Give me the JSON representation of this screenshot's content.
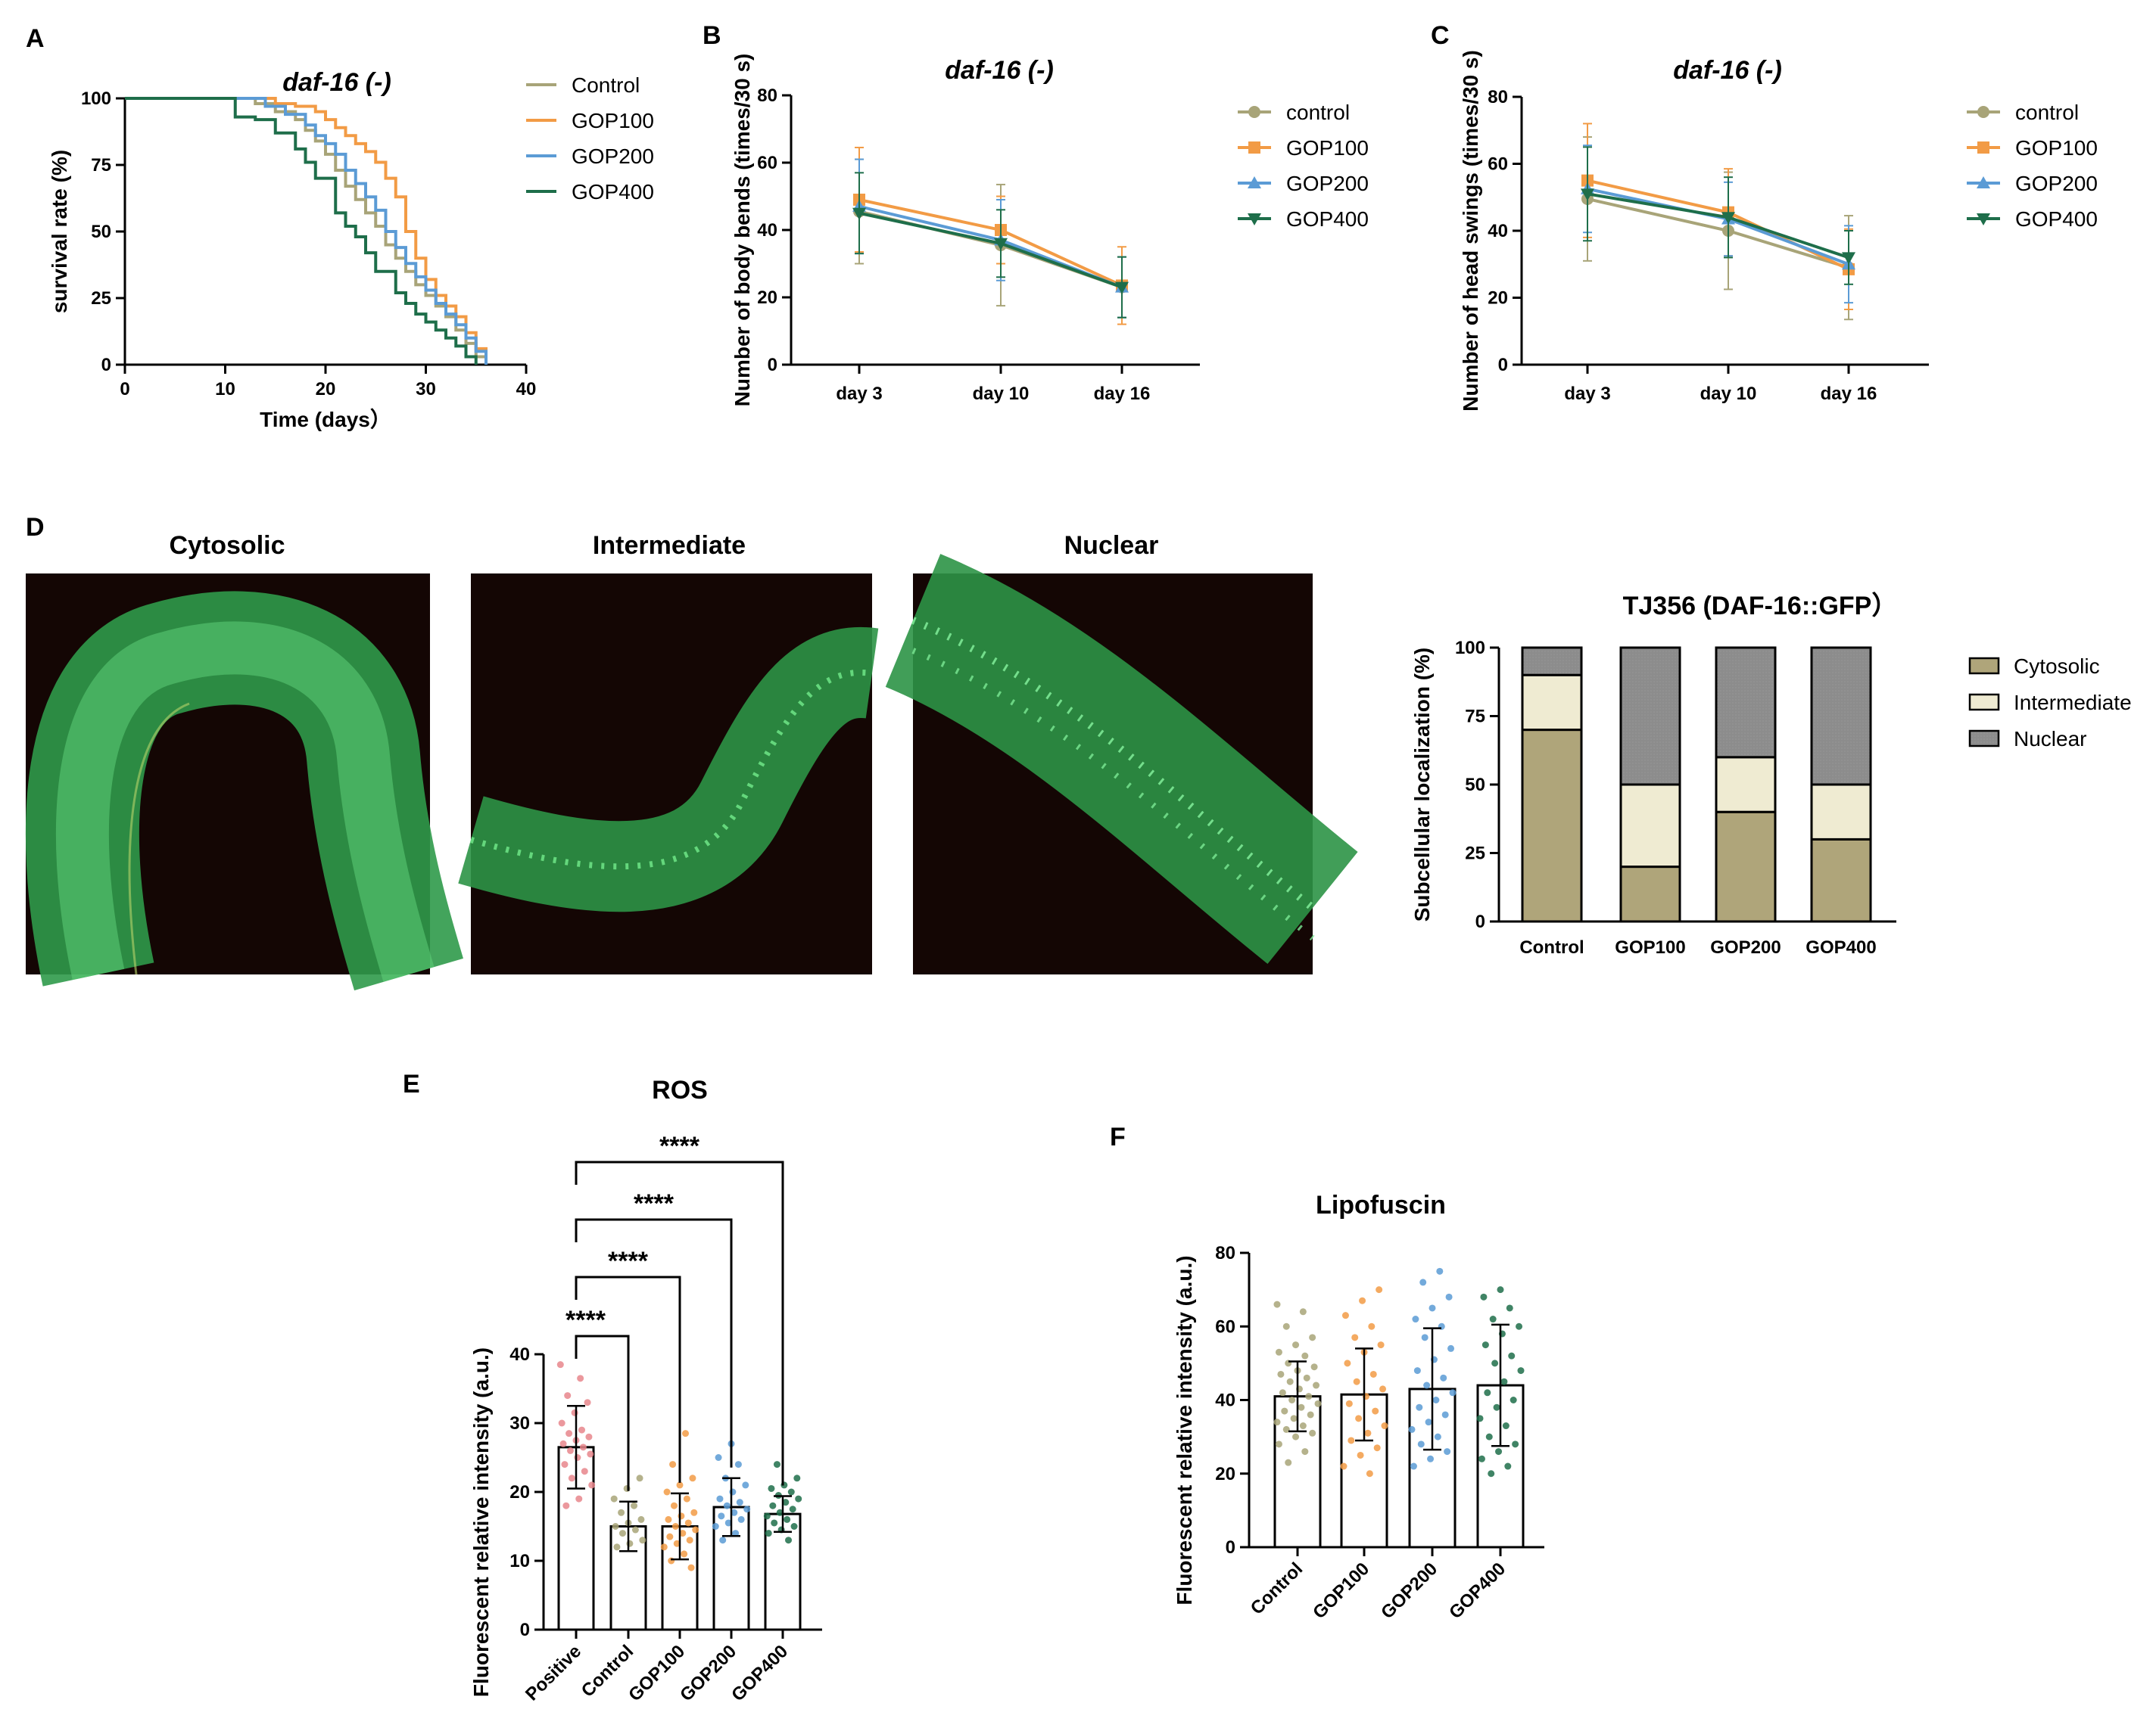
{
  "panels": {
    "A": "A",
    "B": "B",
    "C": "C",
    "D": "D",
    "E": "E",
    "F": "F"
  },
  "colors": {
    "control": "#A8A478",
    "gop100": "#F29B45",
    "gop200": "#5B9BD5",
    "gop400": "#1E6E4A",
    "positive": "#E8868C",
    "cytosolic": "#AFA57A",
    "intermediate": "#EFEBD2",
    "nuclear": "#8C8C8C"
  },
  "micrographs": {
    "cytosolic": "Cytosolic",
    "intermediate": "Intermediate",
    "nuclear": "Nuclear"
  },
  "chart_data": [
    {
      "id": "A",
      "type": "line",
      "step": true,
      "title": "daf-16 (-)",
      "xlabel": "Time (days）",
      "ylabel": "survival rate (%)",
      "xlim": [
        0,
        40
      ],
      "ylim": [
        0,
        100
      ],
      "xticks": [
        "0",
        "10",
        "20",
        "30",
        "40"
      ],
      "yticks": [
        "0",
        "25",
        "50",
        "75",
        "100"
      ],
      "legend": [
        "Control",
        "GOP100",
        "GOP200",
        "GOP400"
      ],
      "series": [
        {
          "name": "Control",
          "x": [
            0,
            10,
            13,
            15,
            17,
            18,
            19,
            20,
            21,
            22,
            23,
            24,
            25,
            26,
            27,
            28,
            29,
            30,
            31,
            32,
            33,
            34,
            35,
            36
          ],
          "y": [
            100,
            100,
            98,
            95,
            92,
            88,
            84,
            79,
            73,
            67,
            62,
            57,
            52,
            45,
            40,
            35,
            30,
            26,
            22,
            18,
            13,
            8,
            3,
            0
          ]
        },
        {
          "name": "GOP100",
          "x": [
            0,
            12,
            15,
            17,
            19,
            20,
            21,
            22,
            23,
            24,
            25,
            26,
            27,
            28,
            29,
            30,
            31,
            32,
            33,
            34,
            35,
            36
          ],
          "y": [
            100,
            100,
            98,
            97,
            95,
            92,
            89,
            86,
            83,
            80,
            76,
            70,
            63,
            50,
            40,
            32,
            26,
            22,
            18,
            12,
            6,
            0
          ]
        },
        {
          "name": "GOP200",
          "x": [
            0,
            11,
            14,
            16,
            18,
            19,
            20,
            21,
            22,
            23,
            24,
            25,
            26,
            27,
            28,
            29,
            30,
            31,
            32,
            33,
            34,
            35,
            36
          ],
          "y": [
            100,
            100,
            97,
            94,
            90,
            86,
            83,
            79,
            73,
            68,
            63,
            58,
            50,
            44,
            38,
            33,
            28,
            23,
            19,
            15,
            10,
            5,
            0
          ]
        },
        {
          "name": "GOP400",
          "x": [
            0,
            8,
            11,
            13,
            15,
            17,
            18,
            19,
            21,
            22,
            23,
            24,
            25,
            27,
            28,
            29,
            30,
            31,
            32,
            33,
            34,
            35
          ],
          "y": [
            100,
            100,
            93,
            92,
            87,
            81,
            76,
            70,
            57,
            52,
            48,
            42,
            35,
            27,
            23,
            19,
            16,
            13,
            10,
            7,
            3,
            0
          ]
        }
      ]
    },
    {
      "id": "B",
      "type": "line",
      "title": "daf-16 (-)",
      "xlabel": "",
      "ylabel": "Number of body bends (times/30 s)",
      "categories": [
        "day 3",
        "day 10",
        "day 16"
      ],
      "ylim": [
        0,
        80
      ],
      "yticks": [
        "0",
        "20",
        "40",
        "60",
        "80"
      ],
      "legend": [
        "control",
        "GOP100",
        "GOP200",
        "GOP400"
      ],
      "series": [
        {
          "name": "control",
          "values": [
            45.5,
            35.5,
            23
          ],
          "errors": [
            15.5,
            18,
            9
          ]
        },
        {
          "name": "GOP100",
          "values": [
            49,
            40,
            23.5
          ],
          "errors": [
            15.5,
            10,
            11.5
          ]
        },
        {
          "name": "GOP200",
          "values": [
            47,
            37,
            23
          ],
          "errors": [
            14,
            12,
            9
          ]
        },
        {
          "name": "GOP400",
          "values": [
            45,
            36,
            23
          ],
          "errors": [
            12,
            10,
            9
          ]
        }
      ]
    },
    {
      "id": "C",
      "type": "line",
      "title": "daf-16 (-)",
      "xlabel": "",
      "ylabel": "Number of head swings (times/30 s)",
      "categories": [
        "day 3",
        "day 10",
        "day 16"
      ],
      "ylim": [
        0,
        80
      ],
      "yticks": [
        "0",
        "20",
        "40",
        "60",
        "80"
      ],
      "legend": [
        "control",
        "GOP100",
        "GOP200",
        "GOP400"
      ],
      "series": [
        {
          "name": "control",
          "values": [
            49.5,
            40,
            29
          ],
          "errors": [
            18.5,
            17.5,
            15.5
          ]
        },
        {
          "name": "GOP100",
          "values": [
            55,
            45.5,
            28.5
          ],
          "errors": [
            17,
            13,
            12
          ]
        },
        {
          "name": "GOP200",
          "values": [
            52.5,
            43.5,
            30
          ],
          "errors": [
            13,
            11,
            11.5
          ]
        },
        {
          "name": "GOP400",
          "values": [
            51,
            44,
            32
          ],
          "errors": [
            14,
            12,
            8
          ]
        }
      ]
    },
    {
      "id": "D",
      "type": "bar",
      "stacked": true,
      "title": "TJ356 (DAF-16::GFP）",
      "xlabel": "",
      "ylabel": "Subcellular localization (%)",
      "categories": [
        "Control",
        "GOP100",
        "GOP200",
        "GOP400"
      ],
      "ylim": [
        0,
        100
      ],
      "yticks": [
        "0",
        "25",
        "50",
        "75",
        "100"
      ],
      "legend": [
        "Cytosolic",
        "Intermediate",
        "Nuclear"
      ],
      "series": [
        {
          "name": "Cytosolic",
          "values": [
            70,
            20,
            40,
            30
          ]
        },
        {
          "name": "Intermediate",
          "values": [
            20,
            30,
            20,
            20
          ]
        },
        {
          "name": "Nuclear",
          "values": [
            10,
            50,
            40,
            50
          ]
        }
      ]
    },
    {
      "id": "E",
      "type": "bar",
      "title": "ROS",
      "xlabel": "",
      "ylabel": "Fluorescent relative intensity (a.u.)",
      "categories": [
        "Positive",
        "Control",
        "GOP100",
        "GOP200",
        "GOP400"
      ],
      "ylim": [
        0,
        40
      ],
      "yticks": [
        "0",
        "10",
        "20",
        "30",
        "40"
      ],
      "values": [
        26.5,
        15,
        15,
        17.8,
        16.8
      ],
      "errors": [
        6,
        3.6,
        4.8,
        4.2,
        2.6
      ],
      "points": [
        [
          38.5,
          36.5,
          34,
          33,
          31.5,
          30,
          29,
          28.5,
          28,
          27.5,
          27,
          26.5,
          26,
          25.5,
          25,
          24,
          23,
          22,
          21,
          19,
          18
        ],
        [
          22,
          20.5,
          19,
          18,
          17,
          16,
          15.5,
          15,
          14.5,
          14,
          13,
          12.5,
          12
        ],
        [
          28.5,
          24,
          22,
          21,
          20,
          19,
          18,
          17,
          16.5,
          16,
          15.5,
          15,
          14.5,
          14,
          13.5,
          13,
          12.5,
          12,
          11,
          10,
          9
        ],
        [
          27,
          25,
          24,
          22,
          21,
          20,
          19,
          18.5,
          18,
          17.5,
          17,
          16.5,
          16,
          15.5,
          15,
          14,
          13
        ],
        [
          24,
          22,
          21,
          20.5,
          20,
          19.5,
          19,
          18.5,
          18,
          17.5,
          17,
          16.5,
          16,
          15.5,
          15,
          14.5,
          14,
          13
        ]
      ],
      "significance": [
        {
          "from": "Positive",
          "to": "Control",
          "label": "****"
        },
        {
          "from": "Positive",
          "to": "GOP100",
          "label": "****"
        },
        {
          "from": "Positive",
          "to": "GOP200",
          "label": "****"
        },
        {
          "from": "Positive",
          "to": "GOP400",
          "label": "****"
        }
      ]
    },
    {
      "id": "F",
      "type": "bar",
      "title": "Lipofuscin",
      "xlabel": "",
      "ylabel": "Fluorescent relative intensity (a.u.)",
      "categories": [
        "Control",
        "GOP100",
        "GOP200",
        "GOP400"
      ],
      "ylim": [
        0,
        80
      ],
      "yticks": [
        "0",
        "20",
        "40",
        "60",
        "80"
      ],
      "values": [
        41,
        41.5,
        43,
        44
      ],
      "errors": [
        9.5,
        12.5,
        16.5,
        16.5
      ],
      "points": [
        [
          66,
          64,
          60,
          57,
          55,
          53,
          52,
          50,
          49,
          48,
          47,
          46,
          45,
          44,
          43,
          42,
          41,
          40,
          39,
          38,
          37,
          36,
          35,
          34,
          33,
          32,
          31,
          30,
          28,
          26,
          23
        ],
        [
          70,
          67,
          63,
          60,
          57,
          55,
          53,
          50,
          47,
          45,
          43,
          41,
          39,
          37,
          35,
          33,
          31,
          29,
          27,
          25,
          22,
          20
        ],
        [
          75,
          72,
          68,
          65,
          62,
          60,
          57,
          54,
          51,
          48,
          46,
          44,
          42,
          40,
          38,
          36,
          34,
          32,
          30,
          28,
          26,
          24,
          22
        ],
        [
          70,
          68,
          65,
          62,
          60,
          58,
          55,
          52,
          50,
          48,
          45,
          42,
          40,
          38,
          35,
          33,
          30,
          28,
          26,
          24,
          22,
          20
        ]
      ]
    }
  ]
}
